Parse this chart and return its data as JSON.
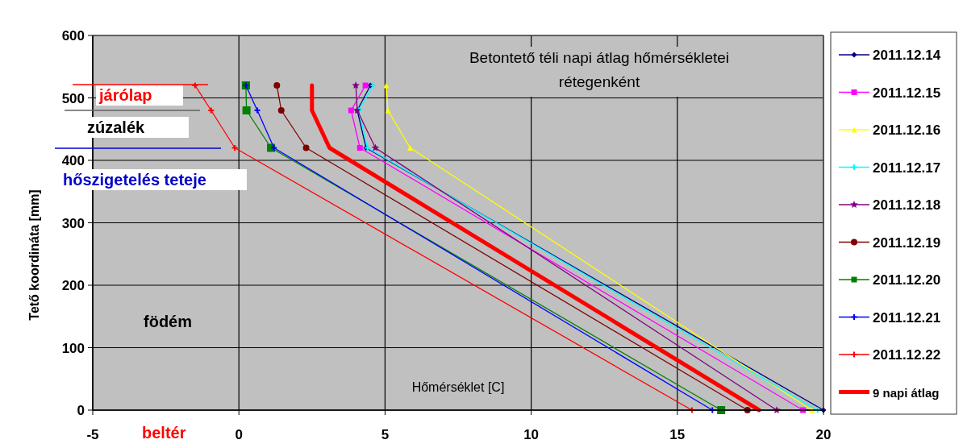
{
  "chart_data": {
    "type": "line",
    "title": "Betontető téli napi átlag hőmérsékletei\nrétegenként",
    "xlabel": "Hőmérséklet [C]",
    "ylabel": "Tető koordináta [mm]",
    "xlim": [
      -5,
      20
    ],
    "xticks": [
      -5,
      0,
      5,
      10,
      15,
      20
    ],
    "ylim": [
      0,
      600
    ],
    "yticks": [
      0,
      100,
      200,
      300,
      400,
      500,
      600
    ],
    "grid": true,
    "legend": "right",
    "annotations": [
      "járólap",
      "zúzalék",
      "hőszigetelés teteje",
      "födém",
      "beltér"
    ],
    "series": [
      {
        "name": "2011.12.14",
        "color": "#000080",
        "marker": "diamond",
        "x": [
          4.5,
          4.05,
          4.35,
          20
        ],
        "values": [
          520,
          480,
          420,
          0
        ]
      },
      {
        "name": "2011.12.15",
        "color": "#ff00ff",
        "marker": "square",
        "x": [
          4.33,
          3.84,
          4.14,
          19.3
        ],
        "values": [
          520,
          480,
          420,
          0
        ]
      },
      {
        "name": "2011.12.16",
        "color": "#ffff00",
        "marker": "triangle",
        "x": [
          5.04,
          5.1,
          5.86,
          19.6
        ],
        "values": [
          520,
          480,
          420,
          0
        ]
      },
      {
        "name": "2011.12.17",
        "color": "#00ffff",
        "marker": "cross",
        "x": [
          4.6,
          4.1,
          4.4,
          19.8
        ],
        "values": [
          520,
          480,
          420,
          0
        ]
      },
      {
        "name": "2011.12.18",
        "color": "#800080",
        "marker": "star",
        "x": [
          4.0,
          4.05,
          4.67,
          18.4
        ],
        "values": [
          520,
          480,
          420,
          0
        ]
      },
      {
        "name": "2011.12.19",
        "color": "#800000",
        "marker": "circle",
        "x": [
          1.3,
          1.45,
          2.3,
          17.4
        ],
        "values": [
          520,
          480,
          420,
          0
        ]
      },
      {
        "name": "2011.12.20",
        "color": "#008000",
        "marker": "square",
        "x": [
          0.24,
          0.26,
          1.1,
          16.5
        ],
        "values": [
          520,
          480,
          420,
          0
        ]
      },
      {
        "name": "2011.12.21",
        "color": "#0000ff",
        "marker": "cross",
        "x": [
          0.24,
          0.63,
          1.2,
          16.2
        ],
        "values": [
          520,
          480,
          420,
          0
        ]
      },
      {
        "name": "2011.12.22",
        "color": "#ff0000",
        "marker": "cross",
        "x": [
          -1.5,
          -0.95,
          -0.14,
          15.5
        ],
        "values": [
          520,
          480,
          420,
          0
        ]
      },
      {
        "name": "9 napi átlag",
        "color": "#ff0000",
        "marker": "none",
        "x": [
          2.5,
          2.5,
          3.1,
          17.8
        ],
        "values": [
          520,
          480,
          420,
          0
        ]
      }
    ]
  }
}
